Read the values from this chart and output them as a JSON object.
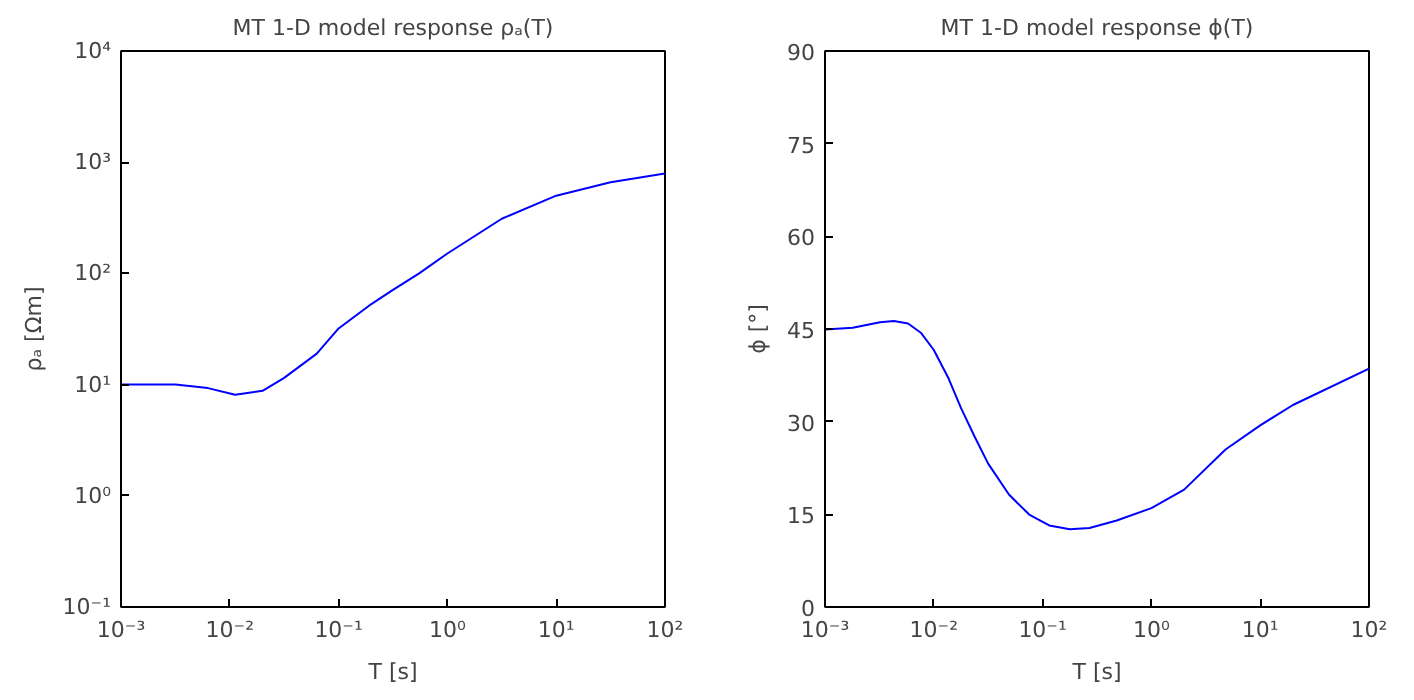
{
  "chart_data": [
    {
      "type": "line",
      "title": "MT 1-D model response ρₐ(T)",
      "xlabel": "T [s]",
      "ylabel": "ρₐ [Ωm]",
      "log": "xy",
      "x": [
        0.001,
        0.00316,
        0.0063,
        0.0112,
        0.02,
        0.0316,
        0.063,
        0.1,
        0.2,
        0.316,
        0.55,
        1,
        3.16,
        10,
        31.6,
        100
      ],
      "series": [
        {
          "color": "#0000ff",
          "values": [
            10,
            10,
            9.3,
            8.1,
            8.8,
            11.5,
            19,
            32,
            53,
            71,
            100,
            151,
            310,
            500,
            660,
            790
          ]
        }
      ],
      "xlim": [
        0.001,
        100
      ],
      "ylim": [
        0.1,
        10000
      ],
      "xticks": [
        {
          "value": 0.001,
          "label": "10⁻³"
        },
        {
          "value": 0.01,
          "label": "10⁻²"
        },
        {
          "value": 0.1,
          "label": "10⁻¹"
        },
        {
          "value": 1,
          "label": "10⁰"
        },
        {
          "value": 10,
          "label": "10¹"
        },
        {
          "value": 100,
          "label": "10²"
        }
      ],
      "yticks": [
        {
          "value": 0.1,
          "label": "10⁻¹"
        },
        {
          "value": 1,
          "label": "10⁰"
        },
        {
          "value": 10,
          "label": "10¹"
        },
        {
          "value": 100,
          "label": "10²"
        },
        {
          "value": 1000,
          "label": "10³"
        },
        {
          "value": 10000,
          "label": "10⁴"
        }
      ]
    },
    {
      "type": "line",
      "title": "MT 1-D model response ϕ(T)",
      "xlabel": "T [s]",
      "ylabel": "ϕ [°]",
      "log": "x",
      "x": [
        0.001,
        0.0018,
        0.0032,
        0.0043,
        0.0058,
        0.0076,
        0.01,
        0.0135,
        0.0178,
        0.024,
        0.0316,
        0.049,
        0.076,
        0.115,
        0.178,
        0.27,
        0.48,
        1,
        2,
        4.8,
        10,
        20,
        100
      ],
      "series": [
        {
          "color": "#0000ff",
          "values": [
            44.9,
            45.2,
            46.1,
            46.3,
            45.9,
            44.4,
            41.6,
            37.2,
            32.2,
            27.4,
            23.2,
            18.2,
            14.9,
            13.2,
            12.6,
            12.8,
            14.0,
            16.0,
            19.0,
            25.5,
            29.4,
            32.7,
            38.6
          ]
        }
      ],
      "xlim": [
        0.001,
        100
      ],
      "ylim": [
        0,
        90
      ],
      "xticks": [
        {
          "value": 0.001,
          "label": "10⁻³"
        },
        {
          "value": 0.01,
          "label": "10⁻²"
        },
        {
          "value": 0.1,
          "label": "10⁻¹"
        },
        {
          "value": 1,
          "label": "10⁰"
        },
        {
          "value": 10,
          "label": "10¹"
        },
        {
          "value": 100,
          "label": "10²"
        }
      ],
      "yticks": [
        0,
        15,
        30,
        45,
        60,
        75,
        90
      ]
    }
  ]
}
